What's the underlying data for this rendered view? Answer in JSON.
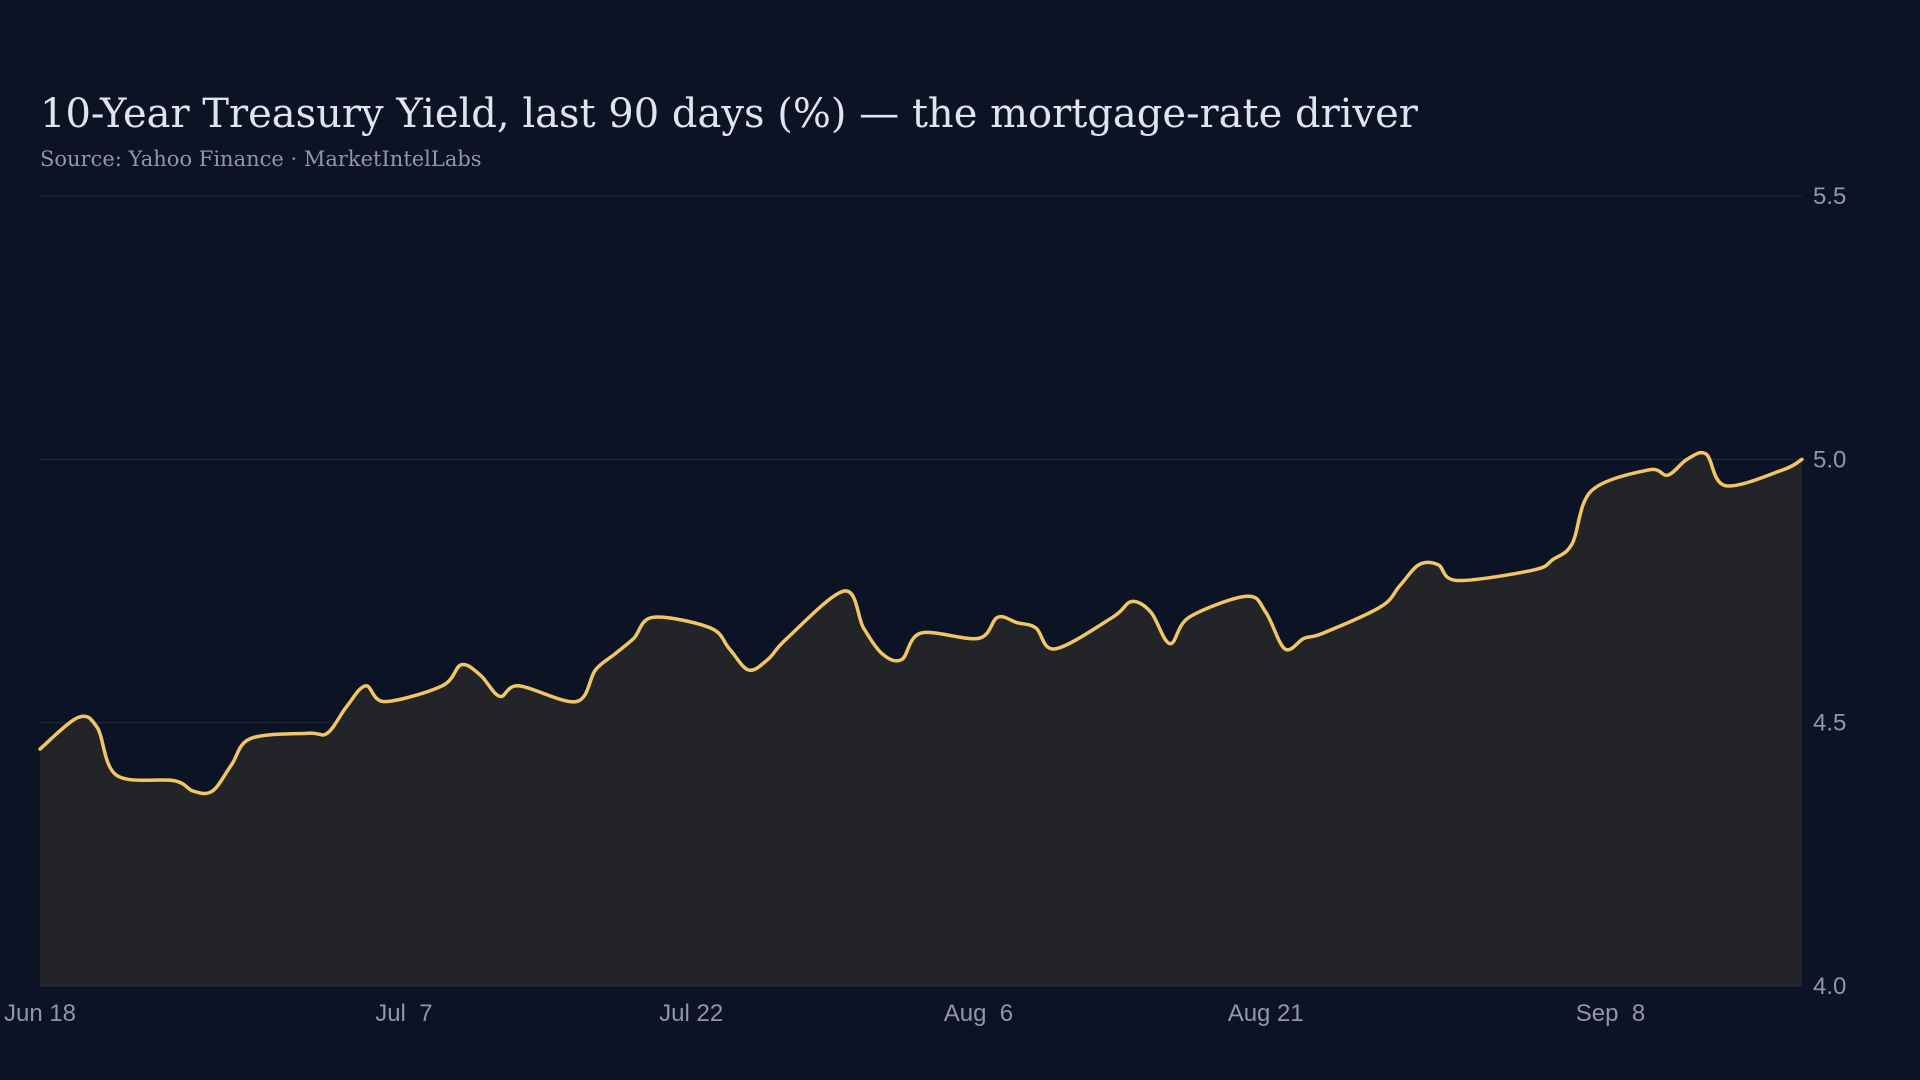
{
  "title": "10-Year Treasury Yield, last 90 days (%) — the mortgage-rate driver",
  "subtitle": "Source: Yahoo Finance · MarketIntelLabs",
  "colors": {
    "background": "#0c1324",
    "line": "#f2c566",
    "area": "#222428",
    "grid": "#1e2638",
    "text": "#dfe4ee",
    "muted": "#8f97a8"
  },
  "chart_data": {
    "type": "area",
    "title": "10-Year Treasury Yield, last 90 days (%) — the mortgage-rate driver",
    "subtitle": "Source: Yahoo Finance · MarketIntelLabs",
    "xlabel": "",
    "ylabel": "",
    "ylim": [
      4.0,
      5.5
    ],
    "yticks": [
      4.0,
      4.5,
      5.0,
      5.5
    ],
    "ytick_labels": [
      "4.0",
      "4.5",
      "5.0",
      "5.5"
    ],
    "xlim": [
      "Jun 18",
      "Sep 18"
    ],
    "x_ticks": [
      {
        "date": "Jun 18",
        "label": "Jun 18"
      },
      {
        "date": "Jul 7",
        "label": "Jul  7"
      },
      {
        "date": "Jul 22",
        "label": "Jul 22"
      },
      {
        "date": "Aug 6",
        "label": "Aug  6"
      },
      {
        "date": "Aug 21",
        "label": "Aug 21"
      },
      {
        "date": "Sep 8",
        "label": "Sep  8"
      }
    ],
    "y_axis_side": "right",
    "grid": "horizontal",
    "legend": "none",
    "series": [
      {
        "x": [
          "Jun 18",
          "Jun 20",
          "Jun 21",
          "Jun 22",
          "Jun 25",
          "Jun 26",
          "Jun 27",
          "Jun 28",
          "Jun 29",
          "Jul 2",
          "Jul 3",
          "Jul 4",
          "Jul 5",
          "Jul 6",
          "Jul 9",
          "Jul 10",
          "Jul 11",
          "Jul 12",
          "Jul 13",
          "Jul 16",
          "Jul 17",
          "Jul 18",
          "Jul 19",
          "Jul 20",
          "Jul 23",
          "Jul 24",
          "Jul 25",
          "Jul 26",
          "Jul 27",
          "Jul 30",
          "Jul 31",
          "Aug 1",
          "Aug 2",
          "Aug 3",
          "Aug 6",
          "Aug 7",
          "Aug 8",
          "Aug 9",
          "Aug 10",
          "Aug 13",
          "Aug 14",
          "Aug 15",
          "Aug 16",
          "Aug 17",
          "Aug 20",
          "Aug 21",
          "Aug 22",
          "Aug 23",
          "Aug 24",
          "Aug 27",
          "Aug 28",
          "Aug 29",
          "Aug 30",
          "Aug 31",
          "Sep 4",
          "Sep 5",
          "Sep 6",
          "Sep 7",
          "Sep 10",
          "Sep 11",
          "Sep 12",
          "Sep 13",
          "Sep 14",
          "Sep 17",
          "Sep 18"
        ],
        "y": [
          4.45,
          4.51,
          4.49,
          4.4,
          4.39,
          4.37,
          4.37,
          4.42,
          4.47,
          4.48,
          4.48,
          4.53,
          4.57,
          4.54,
          4.57,
          4.61,
          4.59,
          4.55,
          4.57,
          4.54,
          4.6,
          4.63,
          4.66,
          4.7,
          4.68,
          4.64,
          4.6,
          4.62,
          4.66,
          4.75,
          4.68,
          4.63,
          4.62,
          4.67,
          4.66,
          4.7,
          4.69,
          4.68,
          4.64,
          4.7,
          4.73,
          4.71,
          4.65,
          4.7,
          4.74,
          4.71,
          4.64,
          4.66,
          4.67,
          4.72,
          4.76,
          4.8,
          4.8,
          4.77,
          4.79,
          4.81,
          4.84,
          4.94,
          4.98,
          4.97,
          5.0,
          5.01,
          4.95,
          4.98,
          5.0
        ]
      }
    ]
  }
}
